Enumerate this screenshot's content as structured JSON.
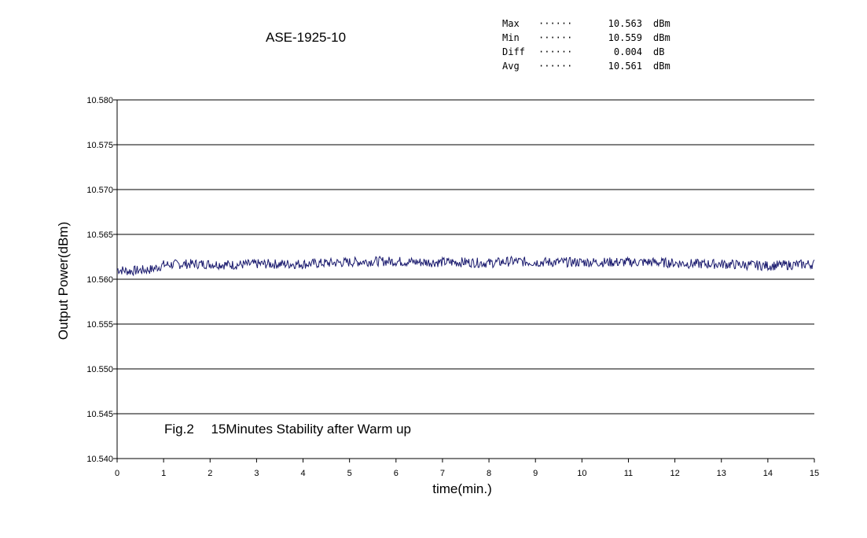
{
  "chart_data": {
    "type": "line",
    "title": "ASE-1925-10",
    "xlabel": "time(min.)",
    "ylabel": "Output Power(dBm)",
    "annotation": "Fig.2　 15Minutes Stability after Warm up",
    "xlim": [
      0,
      15
    ],
    "ylim": [
      10.54,
      10.58
    ],
    "x_ticks": [
      "0",
      "1",
      "2",
      "3",
      "4",
      "5",
      "6",
      "7",
      "8",
      "9",
      "10",
      "11",
      "12",
      "13",
      "14",
      "15"
    ],
    "y_ticks": [
      "10.540",
      "10.545",
      "10.550",
      "10.555",
      "10.560",
      "10.565",
      "10.570",
      "10.575",
      "10.580"
    ],
    "grid": "horizontal",
    "line_color": "#1a1a6e",
    "series": [
      {
        "x": [
          0,
          0.25,
          0.5,
          0.75,
          1,
          1.5,
          2,
          2.5,
          3,
          3.5,
          4,
          4.5,
          5,
          5.5,
          6,
          6.5,
          7,
          7.5,
          8,
          8.5,
          9,
          9.5,
          10,
          10.5,
          11,
          11.5,
          12,
          12.5,
          13,
          13.5,
          14,
          14.5,
          15
        ],
        "values": [
          10.5611,
          10.5609,
          10.561,
          10.5611,
          10.5616,
          10.5617,
          10.5617,
          10.5616,
          10.5617,
          10.5617,
          10.5617,
          10.5618,
          10.5619,
          10.562,
          10.562,
          10.5619,
          10.5619,
          10.5619,
          10.5618,
          10.562,
          10.5619,
          10.5619,
          10.5619,
          10.5619,
          10.5619,
          10.5619,
          10.5618,
          10.5617,
          10.5617,
          10.5616,
          10.5615,
          10.5616,
          10.5617
        ]
      }
    ]
  },
  "stats": [
    {
      "label": "Max",
      "dots": "······",
      "value": "10.563",
      "unit": "dBm"
    },
    {
      "label": "Min",
      "dots": "······",
      "value": "10.559",
      "unit": "dBm"
    },
    {
      "label": "Diff",
      "dots": "······",
      "value": "0.004",
      "unit": "dB"
    },
    {
      "label": "Avg",
      "dots": "······",
      "value": "10.561",
      "unit": "dBm"
    }
  ]
}
